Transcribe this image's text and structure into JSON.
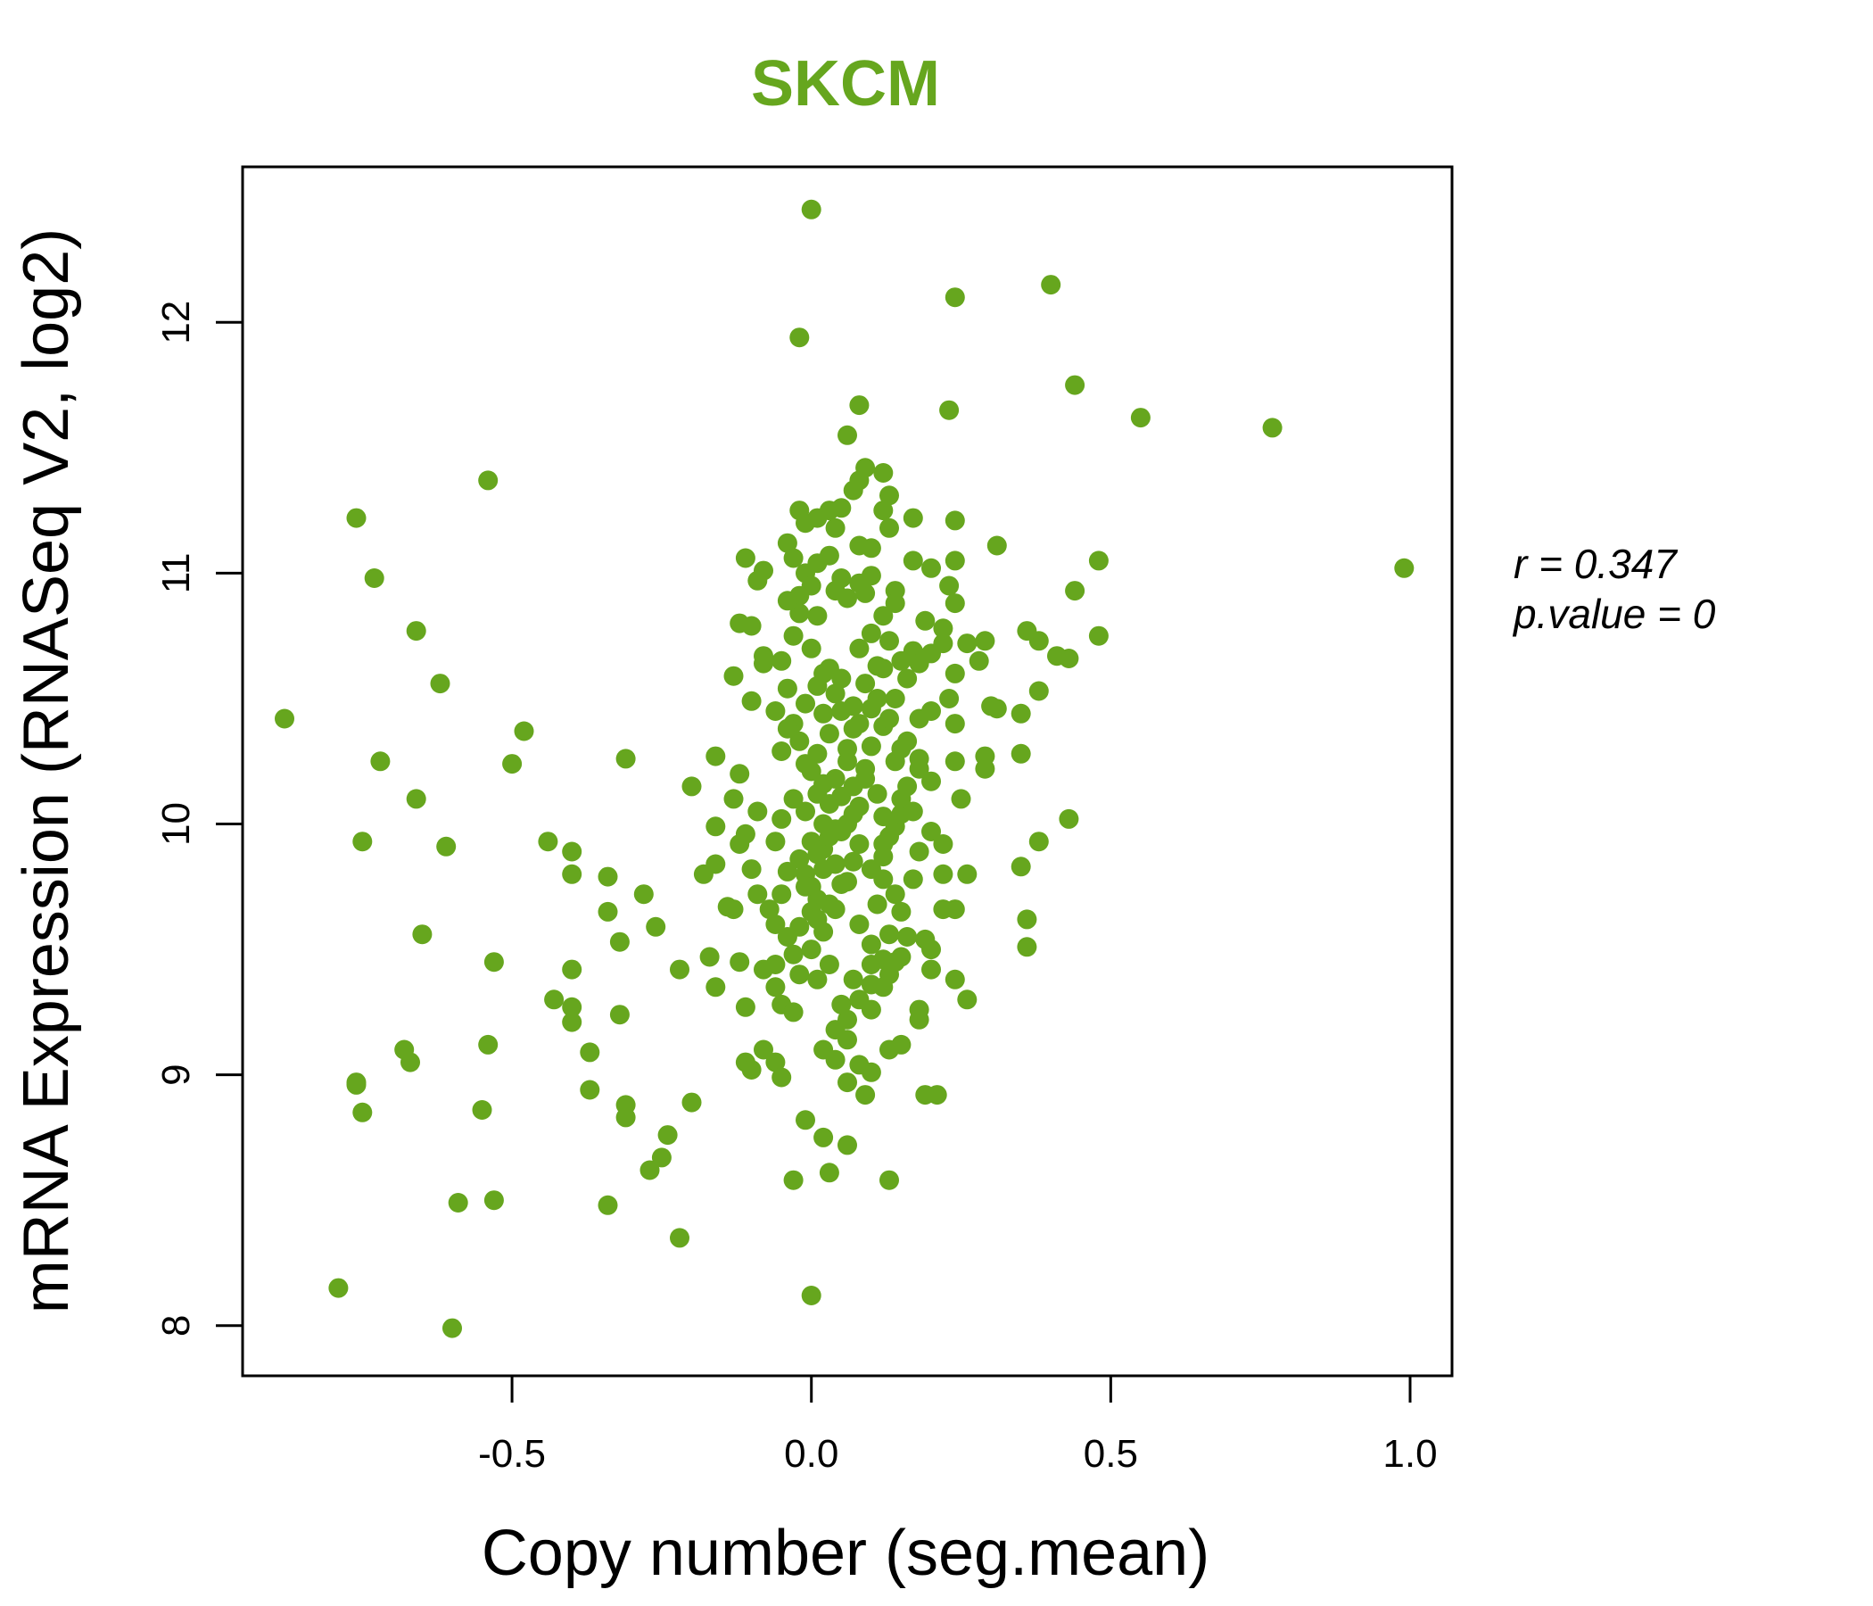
{
  "chart_data": {
    "type": "scatter",
    "title": "SKCM",
    "xlabel": "Copy number (seg.mean)",
    "ylabel": "mRNA Expression (RNASeq V2, log2)",
    "xlim": [
      -0.95,
      1.07
    ],
    "ylim": [
      7.8,
      12.62
    ],
    "x_ticks": [
      -0.5,
      0.0,
      0.5,
      1.0
    ],
    "x_tick_labels": [
      "-0.5",
      "0.0",
      "0.5",
      "1.0"
    ],
    "y_ticks": [
      8,
      9,
      10,
      11,
      12
    ],
    "y_tick_labels": [
      "8",
      "9",
      "10",
      "11",
      "12"
    ],
    "grid": false,
    "annotations": {
      "r_line": "r = 0.347",
      "p_line": "p.value = 0"
    },
    "colors": {
      "points": "#66a61e",
      "title": "#66a61e",
      "axes": "#000000"
    },
    "points": [
      [
        -0.88,
        10.42
      ],
      [
        -0.76,
        11.22
      ],
      [
        -0.73,
        10.98
      ],
      [
        -0.72,
        10.25
      ],
      [
        -0.75,
        9.93
      ],
      [
        -0.66,
        10.77
      ],
      [
        -0.62,
        10.56
      ],
      [
        -0.66,
        10.1
      ],
      [
        -0.61,
        9.91
      ],
      [
        -0.65,
        9.56
      ],
      [
        -0.54,
        11.37
      ],
      [
        -0.48,
        10.37
      ],
      [
        -0.5,
        10.24
      ],
      [
        -0.79,
        8.15
      ],
      [
        -0.6,
        7.99
      ],
      [
        -0.76,
        8.96
      ],
      [
        -0.75,
        8.85
      ],
      [
        -0.68,
        9.1
      ],
      [
        -0.67,
        9.05
      ],
      [
        -0.54,
        9.12
      ],
      [
        -0.55,
        8.86
      ],
      [
        -0.59,
        8.49
      ],
      [
        -0.53,
        8.5
      ],
      [
        -0.76,
        8.97
      ],
      [
        -0.34,
        8.48
      ],
      [
        -0.44,
        9.93
      ],
      [
        -0.4,
        9.89
      ],
      [
        -0.4,
        9.8
      ],
      [
        -0.34,
        9.79
      ],
      [
        -0.28,
        9.72
      ],
      [
        -0.34,
        9.65
      ],
      [
        -0.26,
        9.59
      ],
      [
        -0.32,
        9.53
      ],
      [
        -0.4,
        9.42
      ],
      [
        -0.43,
        9.3
      ],
      [
        -0.4,
        9.27
      ],
      [
        -0.4,
        9.21
      ],
      [
        -0.32,
        9.24
      ],
      [
        -0.37,
        9.09
      ],
      [
        -0.37,
        8.94
      ],
      [
        -0.31,
        8.88
      ],
      [
        -0.31,
        8.83
      ],
      [
        -0.24,
        8.76
      ],
      [
        -0.25,
        8.67
      ],
      [
        -0.27,
        8.62
      ],
      [
        -0.2,
        8.89
      ],
      [
        -0.22,
        8.35
      ],
      [
        -0.31,
        10.26
      ],
      [
        -0.2,
        10.15
      ],
      [
        -0.16,
        10.27
      ],
      [
        -0.16,
        9.99
      ],
      [
        -0.18,
        9.8
      ],
      [
        -0.16,
        9.84
      ],
      [
        -0.14,
        9.67
      ],
      [
        -0.17,
        9.47
      ],
      [
        -0.16,
        9.35
      ],
      [
        -0.22,
        9.42
      ],
      [
        -0.11,
        9.27
      ],
      [
        -0.11,
        9.05
      ],
      [
        -0.1,
        9.02
      ],
      [
        -0.08,
        9.1
      ],
      [
        -0.06,
        9.05
      ],
      [
        -0.05,
        8.99
      ],
      [
        -0.11,
        11.06
      ],
      [
        -0.09,
        10.97
      ],
      [
        -0.08,
        11.01
      ],
      [
        -0.12,
        10.8
      ],
      [
        -0.1,
        10.79
      ],
      [
        -0.08,
        10.67
      ],
      [
        -0.1,
        10.49
      ],
      [
        -0.13,
        10.59
      ],
      [
        -0.08,
        10.64
      ],
      [
        -0.12,
        10.2
      ],
      [
        -0.13,
        10.1
      ],
      [
        -0.09,
        10.05
      ],
      [
        -0.11,
        9.96
      ],
      [
        -0.12,
        9.92
      ],
      [
        -0.1,
        9.82
      ],
      [
        -0.13,
        9.66
      ],
      [
        -0.09,
        9.72
      ],
      [
        -0.12,
        9.45
      ],
      [
        -0.08,
        9.42
      ],
      [
        -0.06,
        9.6
      ],
      [
        -0.04,
        11.12
      ],
      [
        -0.03,
        11.06
      ],
      [
        -0.02,
        11.25
      ],
      [
        -0.01,
        11.2
      ],
      [
        0.01,
        11.22
      ],
      [
        0.03,
        11.25
      ],
      [
        0.04,
        11.18
      ],
      [
        0.05,
        11.26
      ],
      [
        0.07,
        11.33
      ],
      [
        0.08,
        11.37
      ],
      [
        0.09,
        11.42
      ],
      [
        0.12,
        11.4
      ],
      [
        0.13,
        11.31
      ],
      [
        0.12,
        11.25
      ],
      [
        0.13,
        11.18
      ],
      [
        0.08,
        11.11
      ],
      [
        0.1,
        11.1
      ],
      [
        0.03,
        11.07
      ],
      [
        -0.01,
        11.0
      ],
      [
        0.0,
        10.95
      ],
      [
        -0.02,
        10.91
      ],
      [
        0.04,
        10.93
      ],
      [
        0.06,
        10.9
      ],
      [
        0.08,
        10.96
      ],
      [
        0.1,
        10.99
      ],
      [
        0.14,
        10.93
      ],
      [
        0.17,
        11.05
      ],
      [
        0.2,
        11.02
      ],
      [
        0.24,
        11.05
      ],
      [
        0.23,
        10.95
      ],
      [
        0.24,
        10.88
      ],
      [
        0.31,
        11.11
      ],
      [
        0.24,
        11.21
      ],
      [
        0.17,
        11.22
      ],
      [
        0.48,
        11.05
      ],
      [
        0.44,
        10.93
      ],
      [
        0.48,
        10.75
      ],
      [
        0.38,
        10.73
      ],
      [
        0.36,
        10.77
      ],
      [
        0.41,
        10.67
      ],
      [
        0.43,
        10.66
      ],
      [
        0.38,
        10.53
      ],
      [
        0.35,
        10.44
      ],
      [
        0.35,
        10.28
      ],
      [
        0.43,
        10.02
      ],
      [
        0.38,
        9.93
      ],
      [
        0.35,
        9.83
      ],
      [
        0.36,
        9.62
      ],
      [
        0.36,
        9.51
      ],
      [
        0.31,
        10.46
      ],
      [
        0.3,
        10.47
      ],
      [
        0.29,
        10.27
      ],
      [
        0.29,
        10.22
      ],
      [
        0.24,
        10.25
      ],
      [
        0.25,
        10.1
      ],
      [
        0.26,
        10.72
      ],
      [
        0.29,
        10.73
      ],
      [
        0.28,
        10.65
      ],
      [
        0.22,
        10.78
      ],
      [
        0.22,
        10.72
      ],
      [
        0.19,
        10.81
      ],
      [
        0.17,
        10.69
      ],
      [
        0.15,
        10.65
      ],
      [
        0.13,
        10.73
      ],
      [
        0.12,
        10.62
      ],
      [
        0.11,
        10.5
      ],
      [
        0.12,
        10.39
      ],
      [
        0.14,
        10.25
      ],
      [
        0.16,
        10.33
      ],
      [
        0.18,
        10.26
      ],
      [
        0.2,
        10.17
      ],
      [
        0.15,
        10.1
      ],
      [
        0.12,
        10.03
      ],
      [
        0.08,
        10.07
      ],
      [
        0.06,
        10.0
      ],
      [
        0.05,
        9.97
      ],
      [
        0.03,
        10.08
      ],
      [
        0.02,
        10.16
      ],
      [
        0.0,
        10.21
      ],
      [
        -0.02,
        10.33
      ],
      [
        -0.03,
        10.4
      ],
      [
        -0.01,
        10.48
      ],
      [
        0.01,
        10.55
      ],
      [
        0.03,
        10.62
      ],
      [
        0.05,
        10.58
      ],
      [
        0.07,
        10.47
      ],
      [
        0.08,
        10.4
      ],
      [
        0.1,
        10.31
      ],
      [
        0.09,
        10.22
      ],
      [
        0.07,
        10.15
      ],
      [
        0.05,
        10.11
      ],
      [
        0.02,
        10.0
      ],
      [
        0.0,
        9.93
      ],
      [
        -0.02,
        9.86
      ],
      [
        -0.01,
        9.8
      ],
      [
        0.0,
        9.75
      ],
      [
        0.01,
        9.7
      ],
      [
        0.0,
        9.65
      ],
      [
        -0.02,
        9.59
      ],
      [
        -0.04,
        9.55
      ],
      [
        -0.03,
        9.48
      ],
      [
        -0.02,
        9.4
      ],
      [
        0.01,
        9.38
      ],
      [
        0.03,
        9.44
      ],
      [
        0.0,
        9.5
      ],
      [
        0.02,
        9.57
      ],
      [
        0.04,
        9.66
      ],
      [
        0.06,
        9.77
      ],
      [
        0.07,
        9.85
      ],
      [
        0.08,
        9.92
      ],
      [
        0.1,
        9.82
      ],
      [
        0.12,
        9.78
      ],
      [
        0.14,
        9.72
      ],
      [
        0.15,
        9.65
      ],
      [
        0.16,
        9.55
      ],
      [
        0.15,
        9.47
      ],
      [
        0.13,
        9.4
      ],
      [
        0.1,
        9.36
      ],
      [
        0.08,
        9.3
      ],
      [
        0.06,
        9.22
      ],
      [
        0.04,
        9.18
      ],
      [
        0.02,
        9.1
      ],
      [
        0.04,
        9.06
      ],
      [
        0.06,
        9.14
      ],
      [
        0.08,
        9.04
      ],
      [
        0.1,
        9.01
      ],
      [
        0.06,
        8.97
      ],
      [
        0.09,
        8.92
      ],
      [
        -0.01,
        8.82
      ],
      [
        0.02,
        8.75
      ],
      [
        0.06,
        8.72
      ],
      [
        0.03,
        8.61
      ],
      [
        -0.03,
        8.58
      ],
      [
        0.13,
        8.58
      ],
      [
        0.0,
        8.12
      ],
      [
        0.19,
        8.92
      ],
      [
        0.21,
        8.92
      ],
      [
        0.13,
        9.1
      ],
      [
        0.15,
        9.12
      ],
      [
        0.18,
        9.26
      ],
      [
        0.18,
        9.22
      ],
      [
        0.2,
        9.42
      ],
      [
        0.2,
        9.5
      ],
      [
        0.24,
        9.38
      ],
      [
        0.26,
        9.3
      ],
      [
        0.24,
        9.66
      ],
      [
        0.26,
        9.8
      ],
      [
        0.22,
        9.8
      ],
      [
        0.22,
        9.92
      ],
      [
        0.2,
        9.97
      ],
      [
        0.18,
        9.89
      ],
      [
        0.17,
        9.78
      ],
      [
        0.19,
        9.54
      ],
      [
        0.22,
        9.66
      ],
      [
        0.14,
        9.99
      ],
      [
        0.12,
        9.92
      ],
      [
        -0.06,
        9.44
      ],
      [
        -0.06,
        9.35
      ],
      [
        -0.05,
        9.28
      ],
      [
        -0.03,
        9.25
      ],
      [
        -0.07,
        9.66
      ],
      [
        -0.05,
        9.72
      ],
      [
        -0.04,
        9.81
      ],
      [
        -0.06,
        9.93
      ],
      [
        -0.05,
        10.02
      ],
      [
        -0.03,
        10.1
      ],
      [
        -0.05,
        10.29
      ],
      [
        -0.04,
        10.38
      ],
      [
        -0.06,
        10.45
      ],
      [
        -0.04,
        10.54
      ],
      [
        -0.05,
        10.65
      ],
      [
        -0.03,
        10.75
      ],
      [
        -0.02,
        10.84
      ],
      [
        -0.04,
        10.89
      ],
      [
        0.01,
        10.83
      ],
      [
        0.0,
        10.7
      ],
      [
        0.02,
        10.6
      ],
      [
        0.04,
        10.52
      ],
      [
        0.05,
        10.45
      ],
      [
        0.03,
        10.36
      ],
      [
        0.01,
        10.28
      ],
      [
        -0.01,
        10.24
      ],
      [
        0.06,
        10.25
      ],
      [
        0.09,
        10.18
      ],
      [
        0.11,
        10.12
      ],
      [
        0.07,
        10.04
      ],
      [
        0.04,
        9.98
      ],
      [
        0.02,
        9.9
      ],
      [
        0.04,
        9.84
      ],
      [
        0.05,
        9.76
      ],
      [
        0.03,
        9.68
      ],
      [
        0.01,
        9.62
      ],
      [
        0.08,
        9.6
      ],
      [
        0.1,
        9.52
      ],
      [
        0.12,
        9.46
      ],
      [
        0.1,
        9.44
      ],
      [
        0.07,
        9.38
      ],
      [
        0.05,
        9.28
      ],
      [
        0.1,
        9.26
      ],
      [
        0.12,
        9.35
      ],
      [
        0.14,
        9.45
      ],
      [
        0.13,
        9.56
      ],
      [
        0.11,
        9.68
      ],
      [
        0.12,
        9.87
      ],
      [
        0.13,
        9.95
      ],
      [
        0.15,
        10.04
      ],
      [
        0.17,
        10.05
      ],
      [
        0.16,
        10.15
      ],
      [
        0.18,
        10.22
      ],
      [
        0.15,
        10.3
      ],
      [
        0.13,
        10.42
      ],
      [
        0.14,
        10.5
      ],
      [
        0.16,
        10.58
      ],
      [
        0.18,
        10.64
      ],
      [
        0.2,
        10.68
      ],
      [
        0.24,
        10.6
      ],
      [
        0.23,
        10.5
      ],
      [
        0.24,
        10.4
      ],
      [
        0.2,
        10.45
      ],
      [
        0.18,
        10.42
      ],
      [
        -0.02,
        11.94
      ],
      [
        0.0,
        12.45
      ],
      [
        0.06,
        11.55
      ],
      [
        0.08,
        11.67
      ],
      [
        0.24,
        12.1
      ],
      [
        0.23,
        11.65
      ],
      [
        0.4,
        12.15
      ],
      [
        0.44,
        11.75
      ],
      [
        0.55,
        11.62
      ],
      [
        0.77,
        11.58
      ],
      [
        0.99,
        11.02
      ],
      [
        -0.53,
        9.45
      ],
      [
        -0.01,
        9.75
      ],
      [
        0.02,
        9.82
      ],
      [
        0.01,
        9.88
      ],
      [
        0.03,
        9.95
      ],
      [
        -0.01,
        10.05
      ],
      [
        0.01,
        10.12
      ],
      [
        0.04,
        10.18
      ],
      [
        0.06,
        10.3
      ],
      [
        0.07,
        10.38
      ],
      [
        0.02,
        10.44
      ],
      [
        0.1,
        10.46
      ],
      [
        0.09,
        10.56
      ],
      [
        0.11,
        10.63
      ],
      [
        0.08,
        10.7
      ],
      [
        0.1,
        10.76
      ],
      [
        0.12,
        10.83
      ],
      [
        0.14,
        10.88
      ],
      [
        0.09,
        10.92
      ],
      [
        0.05,
        10.98
      ],
      [
        0.01,
        11.04
      ]
    ]
  }
}
